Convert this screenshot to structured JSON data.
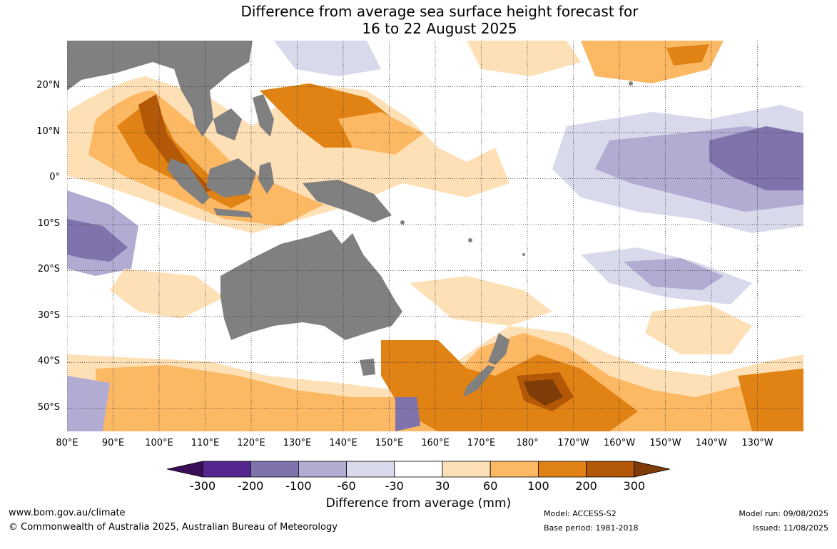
{
  "title": {
    "line1": "Difference from average sea surface height forecast for",
    "line2": "16 to 22 August 2025"
  },
  "map": {
    "land_color": "#808080",
    "grid": true,
    "lat_labels": [
      "20°N",
      "10°N",
      "0°",
      "10°S",
      "20°S",
      "30°S",
      "40°S",
      "50°S"
    ],
    "lat_values": [
      20,
      10,
      0,
      -10,
      -20,
      -30,
      -40,
      -50
    ],
    "lon_labels": [
      "80°E",
      "90°E",
      "100°E",
      "110°E",
      "120°E",
      "130°E",
      "140°E",
      "150°E",
      "160°E",
      "170°E",
      "180°",
      "170°W",
      "160°W",
      "150°W",
      "140°W",
      "130°W"
    ],
    "lon_values": [
      80,
      90,
      100,
      110,
      120,
      130,
      140,
      150,
      160,
      170,
      180,
      190,
      200,
      210,
      220,
      230
    ],
    "lon_range": [
      80,
      240
    ],
    "lat_range": [
      -55,
      30
    ]
  },
  "legend": {
    "title": "Difference from average (mm)",
    "tick_labels": [
      "-300",
      "-200",
      "-100",
      "-60",
      "-30",
      "30",
      "60",
      "100",
      "200",
      "300"
    ],
    "colors": [
      "#3b0f56",
      "#54278f",
      "#8073ac",
      "#b2abd2",
      "#d8daeb",
      "#ffffff",
      "#fee0b6",
      "#fdb863",
      "#e08214",
      "#b35806",
      "#7f3b08"
    ]
  },
  "footer": {
    "website": "www.bom.gov.au/climate",
    "copyright": "© Commonwealth of Australia 2025, Australian Bureau of Meteorology",
    "model": "Model: ACCESS-S2",
    "base_period": "Base period: 1981-2018",
    "model_run": "Model run: 09/08/2025",
    "issued": "Issued: 11/08/2025"
  }
}
